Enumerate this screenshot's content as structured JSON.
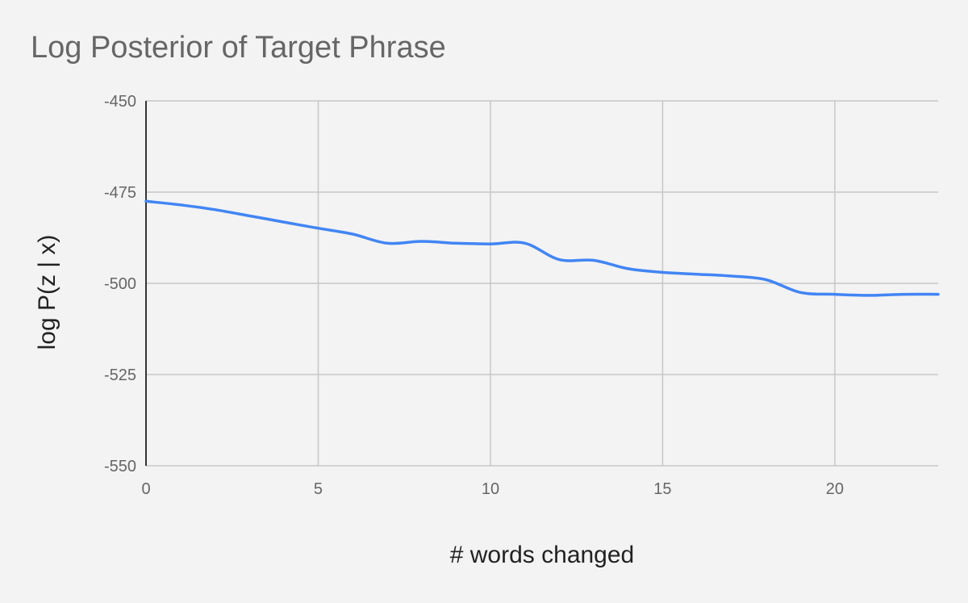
{
  "chart_data": {
    "type": "line",
    "title": "Log Posterior of Target Phrase",
    "xlabel": "# words changed",
    "ylabel": "log P(z | x)",
    "xlim": [
      0,
      23
    ],
    "ylim": [
      -550,
      -450
    ],
    "x_ticks": [
      0,
      5,
      10,
      15,
      20
    ],
    "y_ticks": [
      -450,
      -475,
      -500,
      -525,
      -550
    ],
    "grid": true,
    "legend": "none",
    "series": [
      {
        "x": [
          0,
          1,
          2,
          3,
          4,
          5,
          6,
          7,
          8,
          9,
          10,
          11,
          12,
          13,
          14,
          15,
          16,
          17,
          18,
          19,
          20,
          21,
          22,
          23
        ],
        "values": [
          -477.5,
          -478.5,
          -479.8,
          -481.5,
          -483.2,
          -484.9,
          -486.5,
          -489.0,
          -488.5,
          -489.0,
          -489.2,
          -489.0,
          -493.5,
          -493.7,
          -496.0,
          -497.0,
          -497.5,
          -498.0,
          -499.0,
          -502.5,
          -503.0,
          -503.3,
          -503.0,
          -503.0
        ]
      }
    ],
    "colors": {
      "line": "#4285f4",
      "grid": "#c7c7c7",
      "axis": "#333333",
      "tick_label": "#666666",
      "axis_label": "#222222",
      "title": "#666666",
      "background": "#f3f3f3"
    }
  }
}
